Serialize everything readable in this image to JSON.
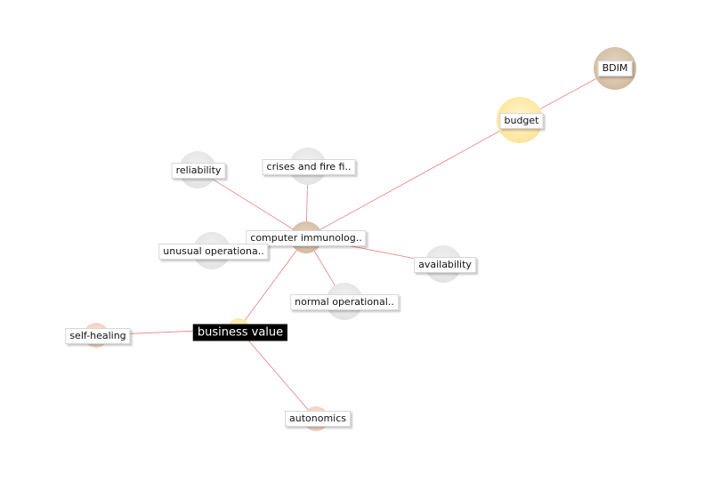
{
  "graph": {
    "edge_color": "#e8807f",
    "nodes": [
      {
        "id": "bdim",
        "label": "BDIM",
        "style": "tan"
      },
      {
        "id": "budget",
        "label": "budget",
        "style": "gold"
      },
      {
        "id": "reliability",
        "label": "reliability",
        "style": "grey"
      },
      {
        "id": "crises",
        "label": "crises and fire fi..",
        "style": "grey"
      },
      {
        "id": "computer",
        "label": "computer immunolog..",
        "style": "tan"
      },
      {
        "id": "unusual",
        "label": "unusual operationa..",
        "style": "grey"
      },
      {
        "id": "availability",
        "label": "availability",
        "style": "grey"
      },
      {
        "id": "normal",
        "label": "normal operational..",
        "style": "grey"
      },
      {
        "id": "business",
        "label": "business value",
        "style": "gold",
        "selected": true
      },
      {
        "id": "selfhealing",
        "label": "self-healing",
        "style": "peach"
      },
      {
        "id": "autonomics",
        "label": "autonomics",
        "style": "peach"
      }
    ],
    "edges": [
      [
        "bdim",
        "budget"
      ],
      [
        "budget",
        "computer"
      ],
      [
        "reliability",
        "computer"
      ],
      [
        "crises",
        "computer"
      ],
      [
        "unusual",
        "computer"
      ],
      [
        "availability",
        "computer"
      ],
      [
        "normal",
        "computer"
      ],
      [
        "business",
        "computer"
      ],
      [
        "selfhealing",
        "business"
      ],
      [
        "autonomics",
        "business"
      ]
    ]
  }
}
